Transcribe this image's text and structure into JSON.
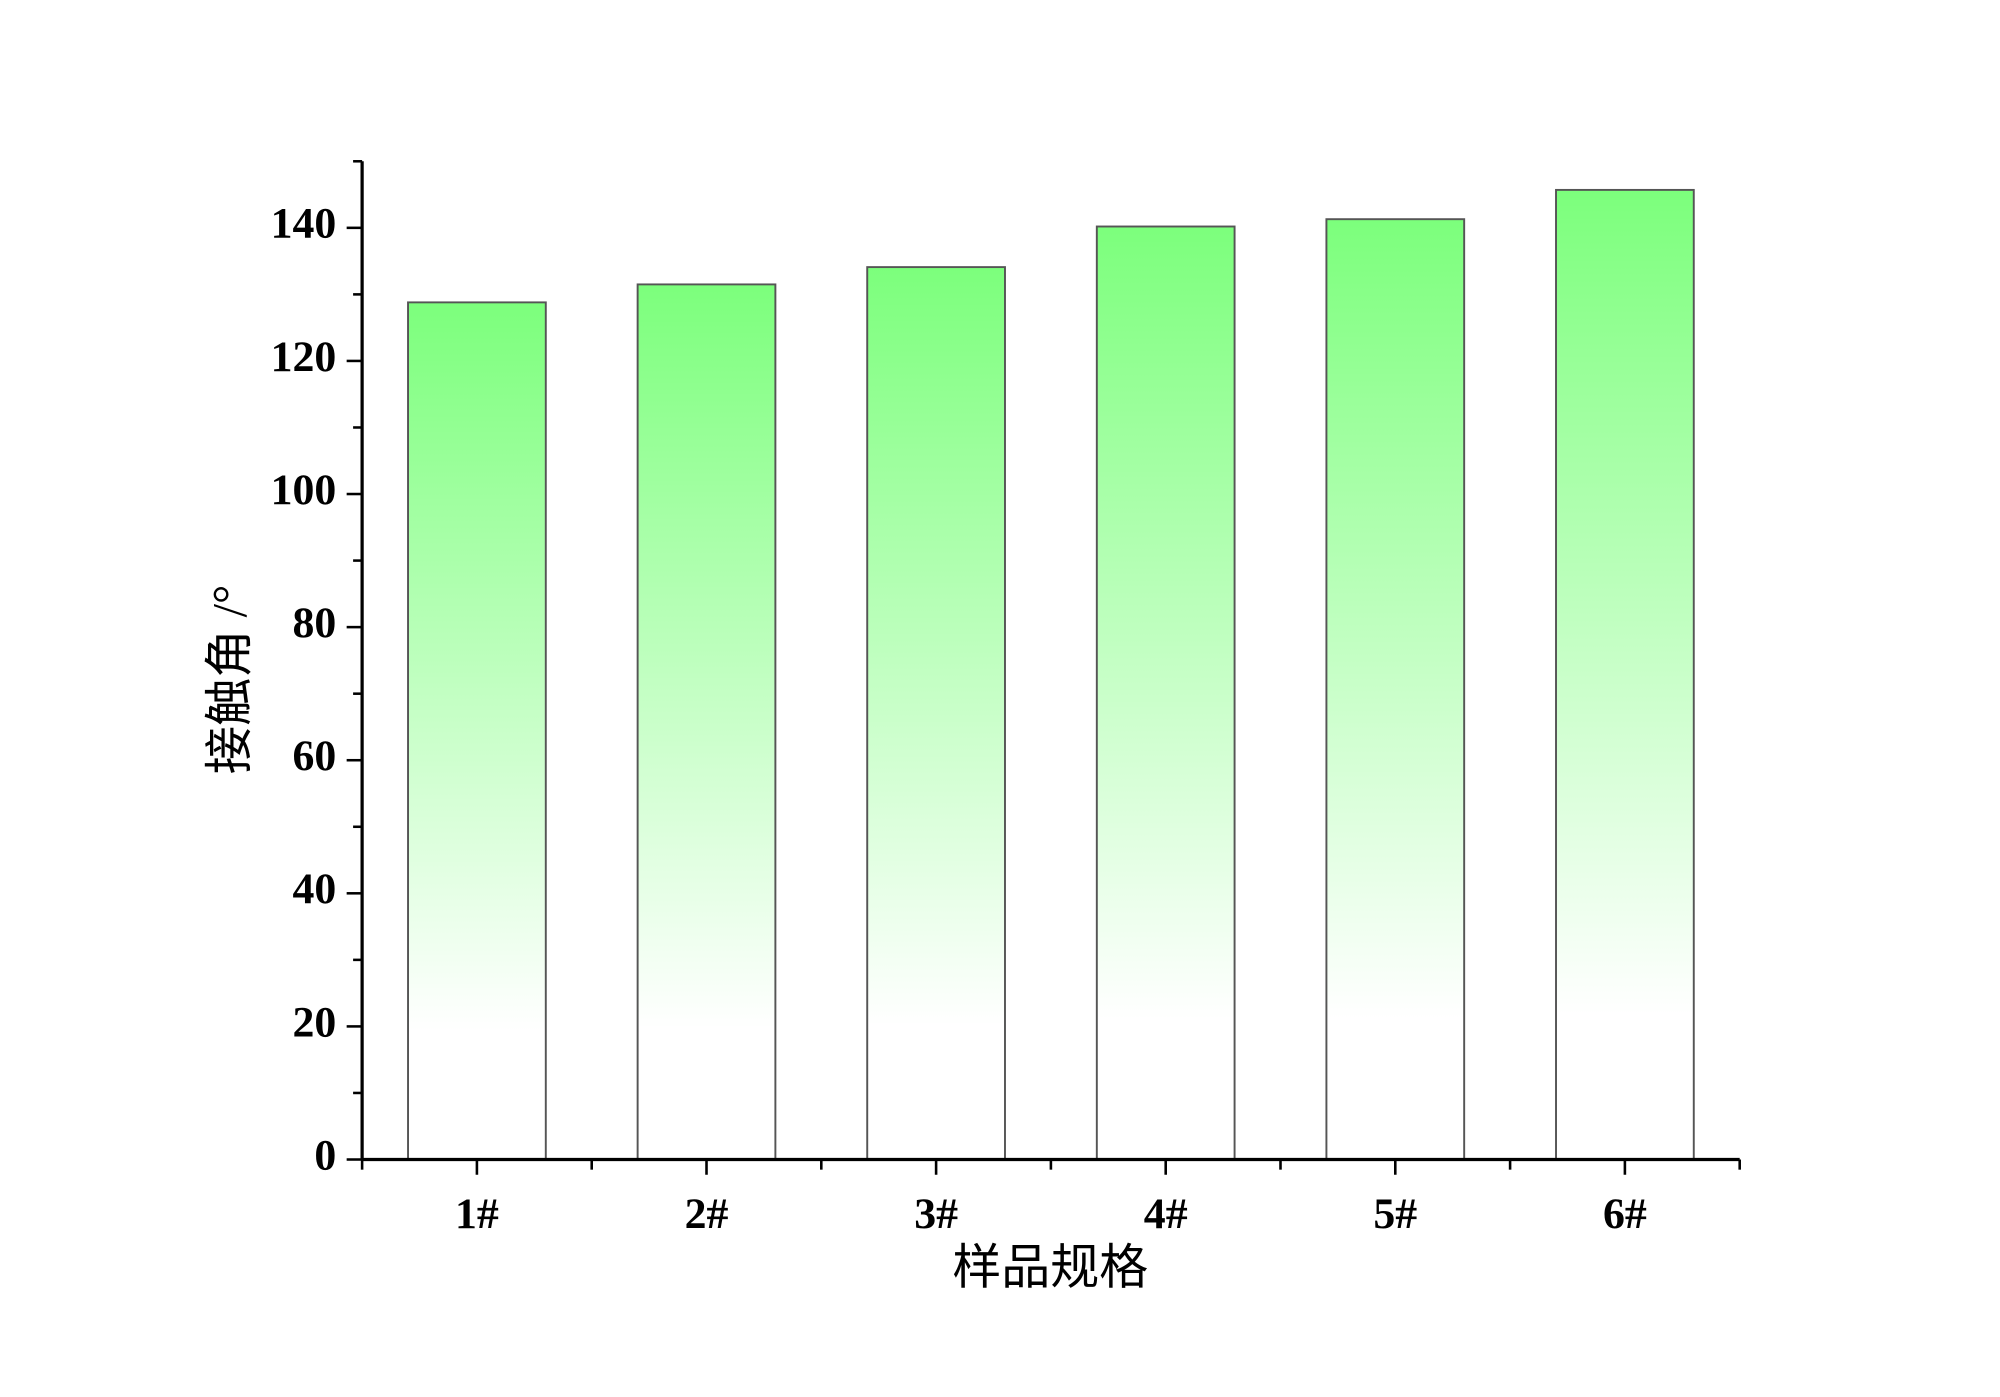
{
  "chart_data": {
    "type": "bar",
    "x_label": "样品规格",
    "y_label": "接触角 /°",
    "categories": [
      "1#",
      "2#",
      "3#",
      "4#",
      "5#",
      "6#"
    ],
    "values": [
      128.8,
      131.5,
      134.1,
      140.2,
      141.3,
      145.7
    ],
    "color": "#7cff7c",
    "ylim": [
      0,
      150
    ],
    "yticks": [
      0,
      20,
      40,
      60,
      80,
      100,
      120,
      140
    ],
    "grid": false
  }
}
